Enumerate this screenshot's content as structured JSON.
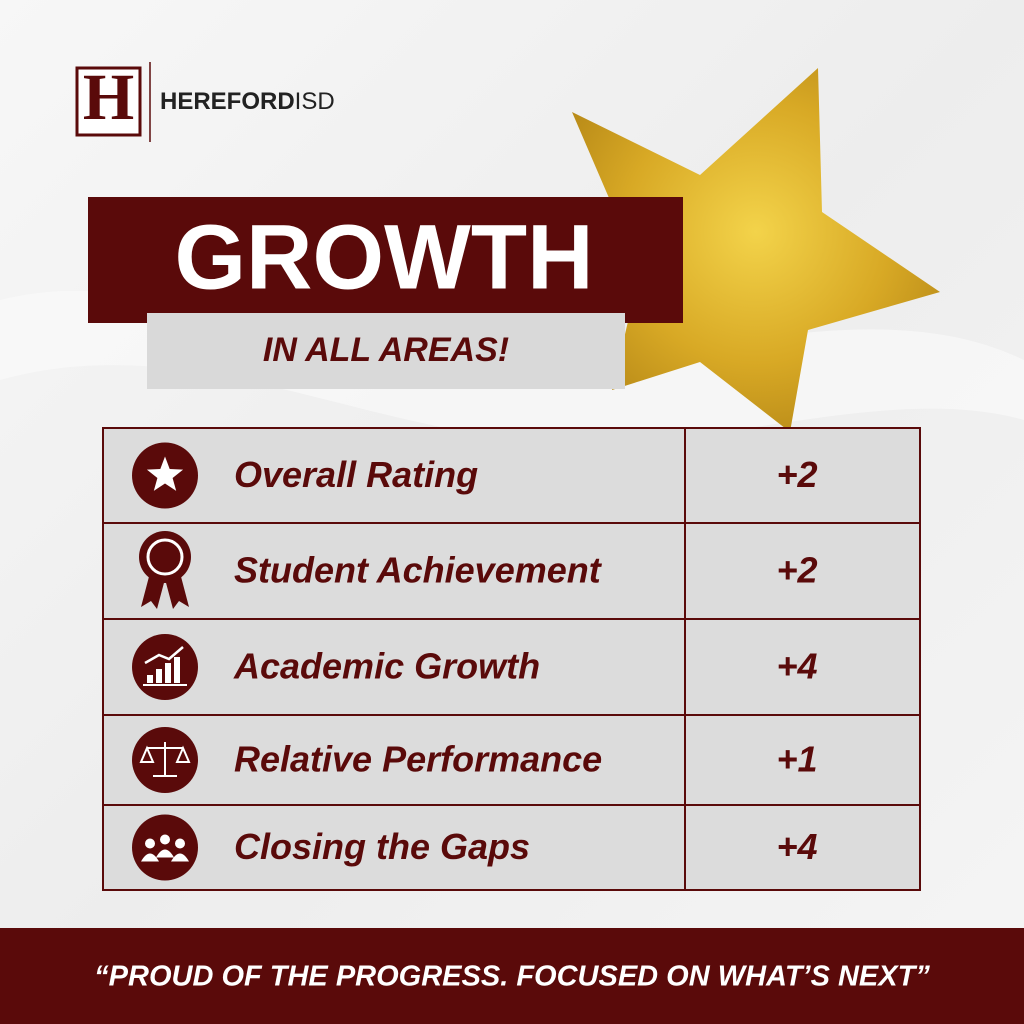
{
  "logo": {
    "letter": "H",
    "name": "HEREFORD",
    "suffix": "ISD"
  },
  "heading": {
    "title": "GROWTH",
    "subtitle": "IN ALL AREAS!"
  },
  "table": {
    "rows": [
      [
        "Overall Rating",
        "+2"
      ],
      [
        "Student Achievement",
        "+2"
      ],
      [
        "Academic Growth",
        "+4"
      ],
      [
        "Relative Performance",
        "+1"
      ],
      [
        "Closing the Gaps",
        "+4"
      ]
    ]
  },
  "footer": {
    "quote": "“PROUD OF THE PROGRESS. FOCUSED ON WHAT’S NEXT”"
  }
}
